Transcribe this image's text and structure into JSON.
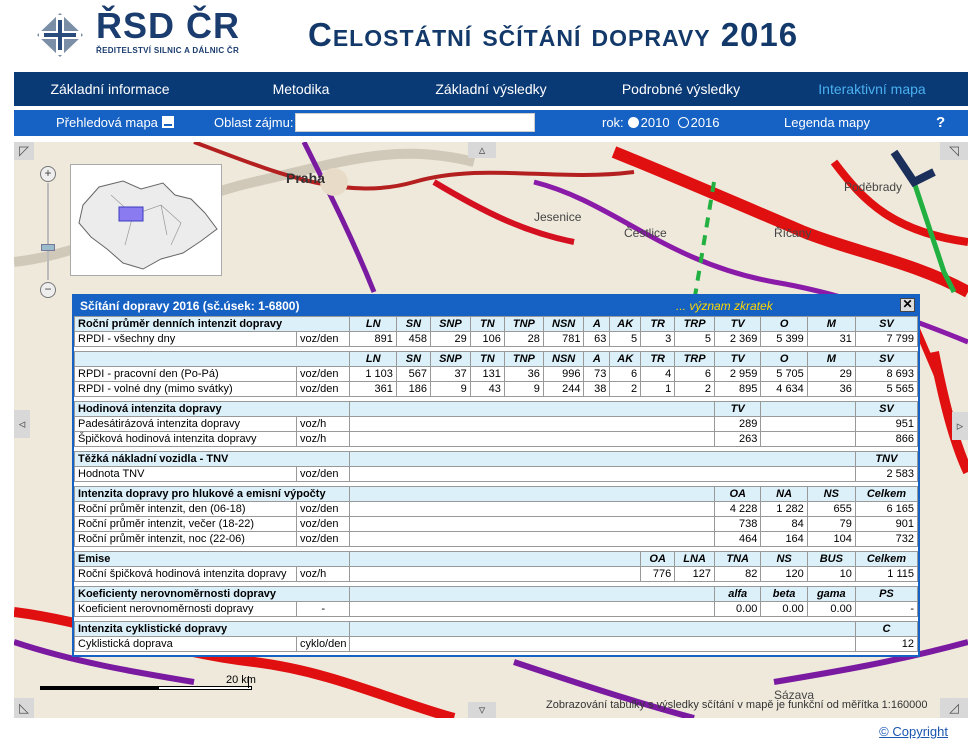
{
  "brand": {
    "name": "ŘSD ČR",
    "subtitle": "ŘEDITELSTVÍ SILNIC A DÁLNIC ČR"
  },
  "title": "Celostátní sčítání dopravy 2016",
  "nav": [
    {
      "label": "Základní informace"
    },
    {
      "label": "Metodika"
    },
    {
      "label": "Základní výsledky"
    },
    {
      "label": "Podrobné výsledky"
    },
    {
      "label": "Interaktivní mapa",
      "active": true
    }
  ],
  "toolbar": {
    "overview": "Přehledová mapa",
    "area_label": "Oblast zájmu:",
    "area_value": "",
    "year_label": "rok:",
    "year_2010": "2010",
    "year_2016": "2016",
    "selected_year": "2016",
    "legend": "Legenda mapy",
    "help": "?"
  },
  "map": {
    "place_labels": [
      "Praha",
      "Jesenice",
      "Čestlice",
      "Říčany",
      "Poděbrady",
      "Sázava"
    ],
    "scale_label": "20 km",
    "note": "Zobrazování tabulky s výsledky sčítání v mapě je funkční od měřítka 1:160000"
  },
  "panel": {
    "title": "Sčítání dopravy 2016 (sč.úsek: 1-6800)",
    "abbr_link": "... význam zkratek",
    "close": "✕",
    "sections": [
      {
        "title": "Roční průměr denních intenzit dopravy",
        "headers": [
          "LN",
          "SN",
          "SNP",
          "TN",
          "TNP",
          "NSN",
          "A",
          "AK",
          "TR",
          "TRP",
          "TV",
          "O",
          "M",
          "SV"
        ],
        "rows": [
          {
            "label": "RPDI - všechny dny",
            "unit": "voz/den",
            "values": [
              "891",
              "458",
              "29",
              "106",
              "28",
              "781",
              "63",
              "5",
              "3",
              "5",
              "2 369",
              "5 399",
              "31",
              "7 799"
            ]
          }
        ]
      },
      {
        "title": "",
        "headers": [
          "LN",
          "SN",
          "SNP",
          "TN",
          "TNP",
          "NSN",
          "A",
          "AK",
          "TR",
          "TRP",
          "TV",
          "O",
          "M",
          "SV"
        ],
        "rows": [
          {
            "label": "RPDI - pracovní den (Po-Pá)",
            "unit": "voz/den",
            "values": [
              "1 103",
              "567",
              "37",
              "131",
              "36",
              "996",
              "73",
              "6",
              "4",
              "6",
              "2 959",
              "5 705",
              "29",
              "8 693"
            ]
          },
          {
            "label": "RPDI - volné dny (mimo svátky)",
            "unit": "voz/den",
            "values": [
              "361",
              "186",
              "9",
              "43",
              "9",
              "244",
              "38",
              "2",
              "1",
              "2",
              "895",
              "4 634",
              "36",
              "5 565"
            ]
          }
        ]
      },
      {
        "title": "Hodinová intenzita dopravy",
        "h1": "TV",
        "h2": "SV",
        "rows": [
          {
            "label": "Padesátirázová intenzita dopravy",
            "unit": "voz/h",
            "v1": "289",
            "v2": "951"
          },
          {
            "label": "Špičková hodinová intenzita dopravy",
            "unit": "voz/h",
            "v1": "263",
            "v2": "866"
          }
        ]
      },
      {
        "title": "Těžká nákladní vozidla - TNV",
        "h": "TNV",
        "rows": [
          {
            "label": "Hodnota TNV",
            "unit": "voz/den",
            "v": "2 583"
          }
        ]
      },
      {
        "title": "Intenzita dopravy pro hlukové a emisní výpočty",
        "headers": [
          "OA",
          "NA",
          "NS",
          "Celkem"
        ],
        "rows": [
          {
            "label": "Roční průměr intenzit, den (06-18)",
            "unit": "voz/den",
            "values": [
              "4 228",
              "1 282",
              "655",
              "6 165"
            ]
          },
          {
            "label": "Roční průměr intenzit, večer (18-22)",
            "unit": "voz/den",
            "values": [
              "738",
              "84",
              "79",
              "901"
            ]
          },
          {
            "label": "Roční průměr intenzit, noc (22-06)",
            "unit": "voz/den",
            "values": [
              "464",
              "164",
              "104",
              "732"
            ]
          }
        ]
      },
      {
        "title": "Emise",
        "headers": [
          "OA",
          "LNA",
          "TNA",
          "NS",
          "BUS",
          "Celkem"
        ],
        "rows": [
          {
            "label": "Roční špičková hodinová intenzita dopravy",
            "unit": "voz/h",
            "values": [
              "776",
              "127",
              "82",
              "120",
              "10",
              "1 115"
            ]
          }
        ]
      },
      {
        "title": "Koeficienty nerovnoměrnosti dopravy",
        "headers": [
          "alfa",
          "beta",
          "gama",
          "PS"
        ],
        "rows": [
          {
            "label": "Koeficient nerovnoměrnosti dopravy",
            "unit": "-",
            "values": [
              "0.00",
              "0.00",
              "0.00",
              "-"
            ]
          }
        ]
      },
      {
        "title": "Intenzita cyklistické dopravy",
        "h": "C",
        "rows": [
          {
            "label": "Cyklistická doprava",
            "unit": "cyklo/den",
            "v": "12"
          }
        ]
      }
    ]
  },
  "footer": {
    "copyright": "© Copyright"
  }
}
